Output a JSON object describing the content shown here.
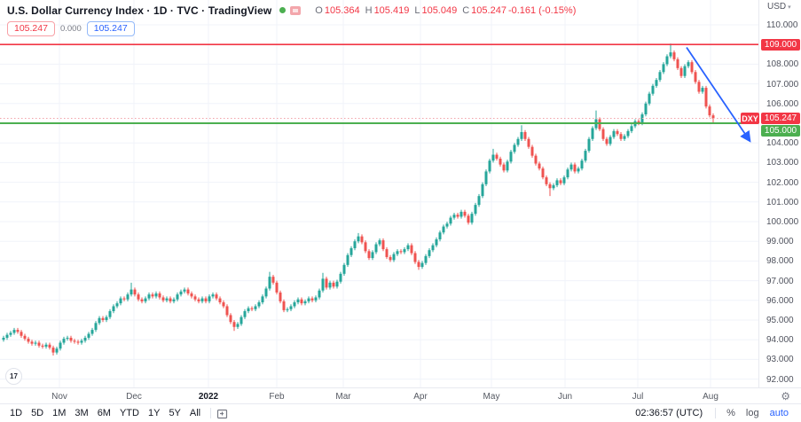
{
  "header": {
    "title_line": "U.S. Dollar Currency Index · 1D · TVC · TradingView",
    "ohlc": {
      "o_label": "O",
      "o_value": "105.364",
      "h_label": "H",
      "h_value": "105.419",
      "l_label": "L",
      "l_value": "105.049",
      "c_label": "C",
      "c_value": "105.247",
      "change": "-0.161 (-0.15%)"
    },
    "badges": {
      "left_price": "105.247",
      "middle_value": "0.000",
      "right_price": "105.247"
    }
  },
  "logo_text": "17",
  "price_axis": {
    "currency_label": "USD",
    "caret": "▾",
    "labels": [
      {
        "text": "110.000",
        "price": 110
      },
      {
        "text": "108.000",
        "price": 108
      },
      {
        "text": "107.000",
        "price": 107
      },
      {
        "text": "106.000",
        "price": 106
      },
      {
        "text": "104.000",
        "price": 104
      },
      {
        "text": "103.000",
        "price": 103
      },
      {
        "text": "102.000",
        "price": 102
      },
      {
        "text": "101.000",
        "price": 101
      },
      {
        "text": "100.000",
        "price": 100
      },
      {
        "text": "99.000",
        "price": 99
      },
      {
        "text": "98.000",
        "price": 98
      },
      {
        "text": "97.000",
        "price": 97
      },
      {
        "text": "96.000",
        "price": 96
      },
      {
        "text": "95.000",
        "price": 95
      },
      {
        "text": "94.000",
        "price": 94
      },
      {
        "text": "93.000",
        "price": 93
      },
      {
        "text": "92.000",
        "price": 92
      }
    ],
    "badges": {
      "resistance": {
        "text": "109.000",
        "price": 109
      },
      "last": {
        "symbol": "DXY",
        "text": "105.247",
        "price": 105.247
      },
      "support": {
        "text": "105.000",
        "price": 105
      }
    },
    "gear": "⚙"
  },
  "toolbar": {
    "ranges": [
      "1D",
      "5D",
      "1M",
      "3M",
      "6M",
      "YTD",
      "1Y",
      "5Y",
      "All"
    ],
    "clock": "02:36:57 (UTC)",
    "percent_label": "%",
    "log_label": "log",
    "auto_label": "auto"
  },
  "colors": {
    "up": "#26a69a",
    "down": "#ef5350",
    "grid": "#f0f3fa",
    "resistance_line": "#f23645",
    "support_line": "#4caf50",
    "last_price_line": "#f2a3a9",
    "arrow": "#2962ff"
  },
  "chart_data": {
    "type": "candlestick",
    "symbol": "DXY",
    "title": "U.S. Dollar Currency Index",
    "interval": "1D",
    "exchange": "TVC",
    "ylim": [
      91.7,
      110.4
    ],
    "grid_prices_range": [
      92,
      110
    ],
    "last_candle": {
      "o": 105.364,
      "h": 105.419,
      "l": 105.049,
      "c": 105.247,
      "change": -0.161,
      "change_pct": -0.15
    },
    "levels": {
      "resistance": 109.0,
      "support": 105.0,
      "last_price": 105.247
    },
    "months": [
      {
        "label": "Nov",
        "x": 67
      },
      {
        "label": "Dec",
        "x": 151
      },
      {
        "label": "2022",
        "x": 235,
        "emphasis": true
      },
      {
        "label": "Feb",
        "x": 312
      },
      {
        "label": "Mar",
        "x": 387
      },
      {
        "label": "Apr",
        "x": 474
      },
      {
        "label": "May",
        "x": 554
      },
      {
        "label": "Jun",
        "x": 637
      },
      {
        "label": "Jul",
        "x": 719
      },
      {
        "label": "Aug",
        "x": 801
      }
    ],
    "first_open": 94.0,
    "default_wick": 0.1,
    "closes": [
      94.1,
      94.25,
      94.35,
      94.5,
      94.4,
      94.2,
      94.05,
      93.9,
      93.8,
      93.85,
      93.7,
      93.65,
      93.75,
      93.6,
      93.35,
      93.55,
      93.85,
      94.05,
      94.1,
      93.95,
      93.9,
      93.85,
      93.95,
      94.1,
      94.3,
      94.5,
      94.85,
      95.1,
      95.0,
      95.15,
      95.45,
      95.7,
      95.85,
      96.1,
      96.05,
      96.3,
      96.55,
      96.3,
      96.05,
      95.95,
      96.1,
      96.3,
      96.2,
      96.35,
      96.15,
      96.0,
      96.1,
      95.95,
      96.05,
      96.3,
      96.45,
      96.55,
      96.35,
      96.2,
      96.05,
      95.95,
      96.1,
      95.95,
      96.2,
      96.3,
      96.1,
      95.9,
      95.7,
      95.25,
      94.9,
      94.65,
      94.8,
      95.15,
      95.45,
      95.6,
      95.55,
      95.7,
      95.9,
      96.2,
      96.6,
      97.2,
      96.9,
      96.4,
      95.95,
      95.5,
      95.55,
      95.7,
      95.9,
      96.05,
      95.85,
      95.95,
      96.1,
      96.0,
      96.15,
      96.5,
      97.1,
      96.65,
      96.9,
      96.7,
      96.95,
      97.35,
      97.8,
      98.3,
      98.65,
      99.0,
      99.25,
      98.95,
      98.5,
      98.15,
      98.45,
      98.85,
      99.05,
      98.6,
      98.2,
      98.05,
      98.35,
      98.5,
      98.45,
      98.6,
      98.8,
      98.4,
      97.95,
      97.7,
      97.9,
      98.25,
      98.55,
      98.8,
      99.1,
      99.45,
      99.75,
      99.9,
      100.2,
      100.35,
      100.25,
      100.5,
      100.3,
      99.95,
      100.4,
      100.85,
      101.3,
      101.9,
      102.55,
      103.1,
      103.4,
      103.2,
      102.9,
      102.6,
      103.05,
      103.55,
      103.9,
      104.2,
      104.55,
      104.2,
      103.8,
      103.35,
      102.95,
      102.7,
      102.25,
      101.9,
      101.7,
      101.85,
      102.1,
      101.95,
      102.25,
      102.65,
      102.9,
      102.55,
      102.7,
      103.1,
      103.6,
      104.2,
      104.75,
      105.2,
      104.7,
      104.2,
      103.95,
      104.3,
      104.6,
      104.45,
      104.2,
      104.35,
      104.6,
      104.85,
      105.1,
      105.0,
      105.45,
      106.0,
      106.5,
      106.9,
      107.2,
      107.6,
      108.0,
      108.4,
      108.6,
      108.25,
      107.8,
      107.4,
      107.9,
      108.1,
      107.6,
      107.1,
      106.6,
      106.8,
      105.85,
      105.4,
      105.247
    ],
    "wick_overrides": {
      "14": {
        "l": 93.2
      },
      "36": {
        "h": 96.9
      },
      "65": {
        "l": 94.45
      },
      "75": {
        "h": 97.45
      },
      "90": {
        "h": 97.4
      },
      "100": {
        "h": 99.42
      },
      "117": {
        "l": 97.55
      },
      "138": {
        "h": 103.7
      },
      "146": {
        "h": 104.9
      },
      "154": {
        "l": 101.3
      },
      "167": {
        "h": 105.65
      },
      "188": {
        "h": 109.05
      },
      "200": {
        "l": 105.03
      }
    },
    "annotation_arrow": {
      "x1": 774,
      "price1": 108.85,
      "x2": 845,
      "price2": 104.12
    }
  }
}
